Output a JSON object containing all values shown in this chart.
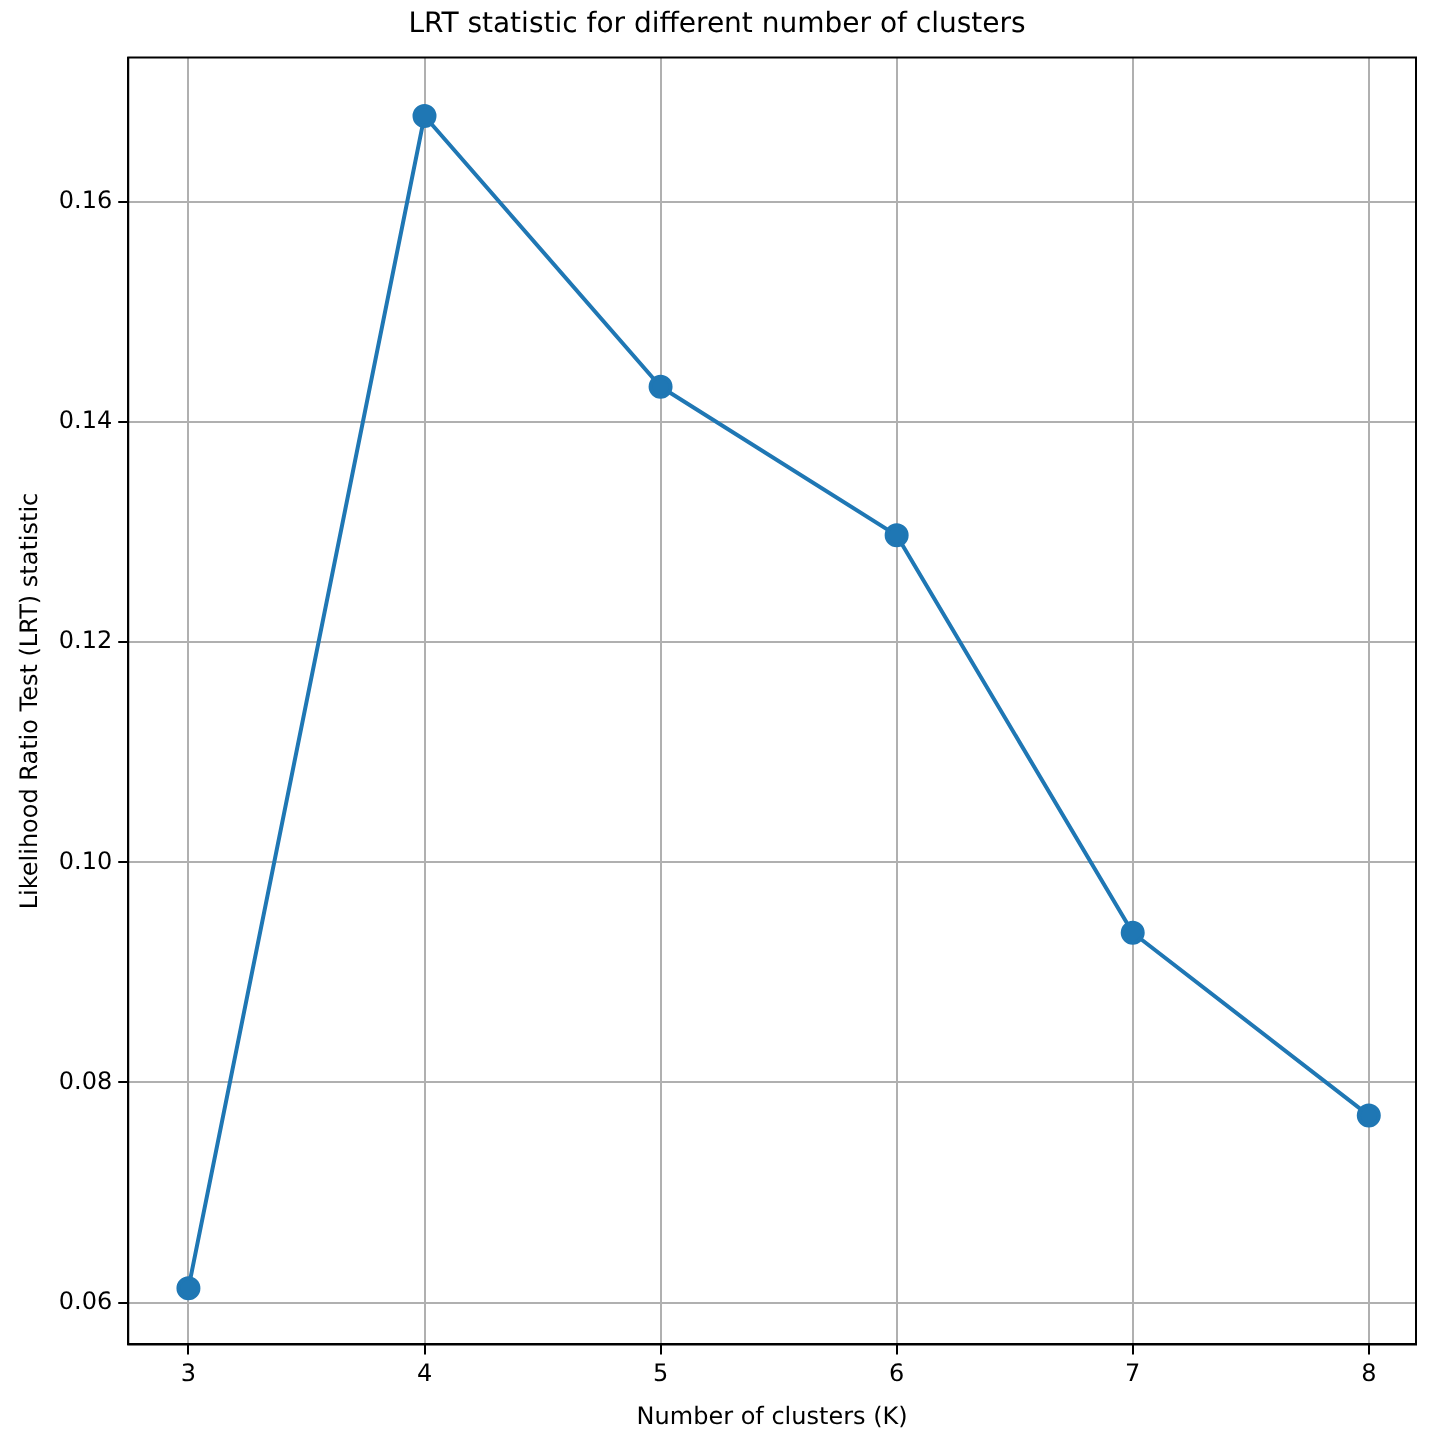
{
  "chart_data": {
    "type": "line",
    "title": "LRT statistic for different number of clusters",
    "xlabel": "Number of clusters (K)",
    "ylabel": "Likelihood Ratio Test (LRT) statistic",
    "x": [
      3,
      4,
      5,
      6,
      7,
      8
    ],
    "series": [
      {
        "color": "#1f77b4",
        "values": [
          0.0613,
          0.1678,
          0.1432,
          0.1297,
          0.0936,
          0.077
        ]
      }
    ],
    "xlim": [
      2.745,
      8.2
    ],
    "xticks": [
      3,
      4,
      5,
      6,
      7,
      8
    ],
    "ylim": [
      0.0562,
      0.1731
    ],
    "yticks": [
      0.06,
      0.08,
      {
        "value": 0.1,
        "label": "0.10"
      },
      0.12,
      0.14,
      0.16
    ],
    "grid": true,
    "marker": "circle",
    "line_style": "solid",
    "legend": false
  }
}
